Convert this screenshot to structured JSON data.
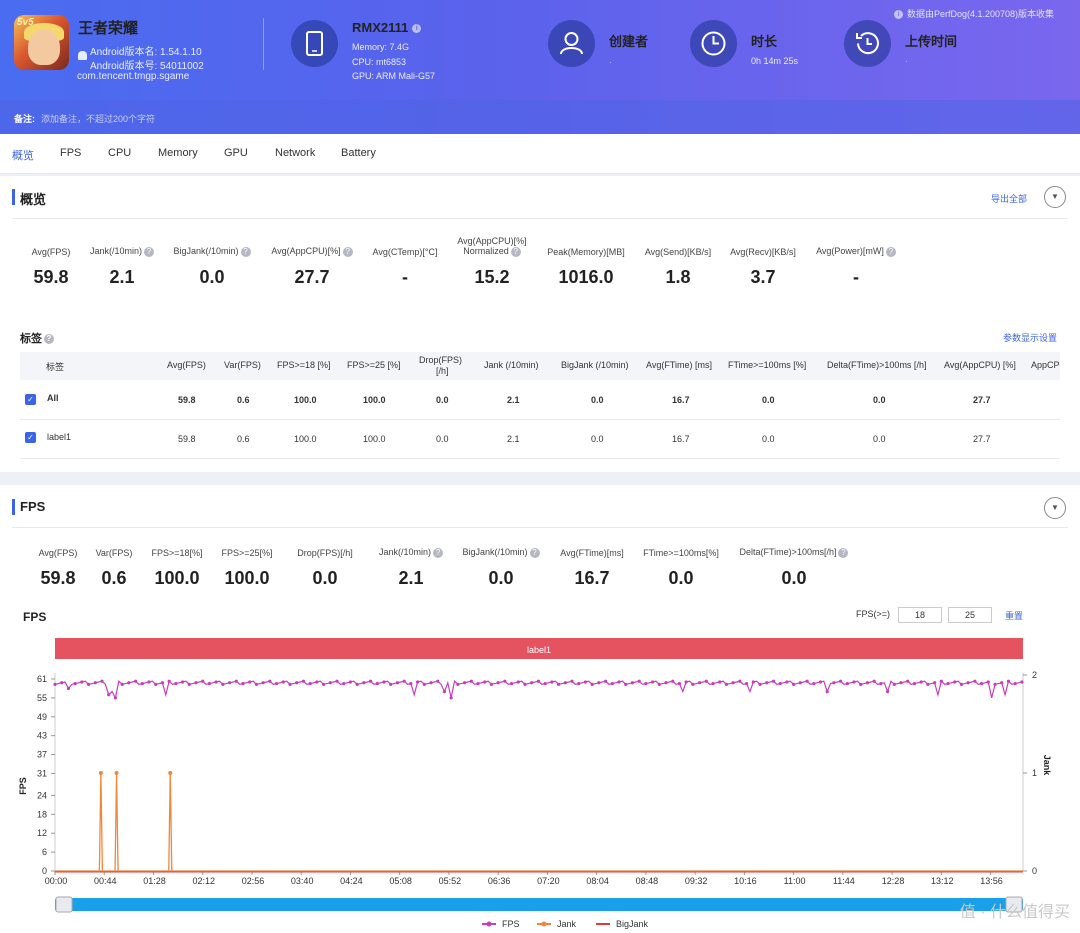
{
  "app": {
    "name": "王者荣耀",
    "icon_badge": "5v5",
    "version_name_line": "Android版本名: 1.54.1.10",
    "version_code_line": "Android版本号: 54011002",
    "package": "com.tencent.tmgp.sgame"
  },
  "device": {
    "name": "RMX2111",
    "memory": "Memory: 7.4G",
    "cpu": "CPU: mt6853",
    "gpu": "GPU: ARM Mali-G57"
  },
  "meta": {
    "creator_title": "创建者",
    "creator_value": "·",
    "duration_title": "时长",
    "duration_value": "0h 14m 25s",
    "upload_title": "上传时间",
    "upload_value": "·"
  },
  "perfdog_note": "数据由PerfDog(4.1.200708)版本收集",
  "note": {
    "label": "备注:",
    "placeholder": "添加备注，不超过200个字符"
  },
  "tabs": [
    "概览",
    "FPS",
    "CPU",
    "Memory",
    "GPU",
    "Network",
    "Battery"
  ],
  "overview": {
    "title": "概览",
    "export_label": "导出全部",
    "stats": [
      {
        "label": "Avg(FPS)",
        "value": "59.8"
      },
      {
        "label": "Jank(/10min)",
        "value": "2.1"
      },
      {
        "label": "BigJank(/10min)",
        "value": "0.0"
      },
      {
        "label": "Avg(AppCPU)[%]",
        "value": "27.7"
      },
      {
        "label": "Avg(CTemp)[°C]",
        "value": "-"
      },
      {
        "label": "Avg(AppCPU)[%]",
        "label2": "Normalized",
        "value": "15.2"
      },
      {
        "label": "Peak(Memory)[MB]",
        "value": "1016.0"
      },
      {
        "label": "Avg(Send)[KB/s]",
        "value": "1.8"
      },
      {
        "label": "Avg(Recv)[KB/s]",
        "value": "3.7"
      },
      {
        "label": "Avg(Power)[mW]",
        "value": "-"
      }
    ],
    "tags_title": "标签",
    "param_settings": "参数显示设置",
    "table": {
      "headers": [
        "标签",
        "Avg(FPS)",
        "Var(FPS)",
        "FPS>=18 [%]",
        "FPS>=25 [%]",
        "Drop(FPS)",
        "[/h]",
        "Jank (/10min)",
        "BigJank (/10min)",
        "Avg(FTime) [ms]",
        "FTime>=100ms [%]",
        "Delta(FTime)>100ms [/h]",
        "Avg(AppCPU) [%]",
        "AppCP"
      ],
      "rows": [
        {
          "label": "All",
          "values": [
            "59.8",
            "0.6",
            "100.0",
            "100.0",
            "0.0",
            "2.1",
            "0.0",
            "16.7",
            "0.0",
            "0.0",
            "27.7"
          ]
        },
        {
          "label": "label1",
          "values": [
            "59.8",
            "0.6",
            "100.0",
            "100.0",
            "0.0",
            "2.1",
            "0.0",
            "16.7",
            "0.0",
            "0.0",
            "27.7"
          ]
        }
      ]
    }
  },
  "fps_section": {
    "title": "FPS",
    "stats": [
      {
        "label": "Avg(FPS)",
        "value": "59.8"
      },
      {
        "label": "Var(FPS)",
        "value": "0.6"
      },
      {
        "label": "FPS>=18[%]",
        "value": "100.0"
      },
      {
        "label": "FPS>=25[%]",
        "value": "100.0"
      },
      {
        "label": "Drop(FPS)[/h]",
        "value": "0.0"
      },
      {
        "label": "Jank(/10min)",
        "value": "2.1"
      },
      {
        "label": "BigJank(/10min)",
        "value": "0.0"
      },
      {
        "label": "Avg(FTime)[ms]",
        "value": "16.7"
      },
      {
        "label": "FTime>=100ms[%]",
        "value": "0.0"
      },
      {
        "label": "Delta(FTime)>100ms[/h]",
        "value": "0.0"
      }
    ],
    "chart_title": "FPS",
    "fps_filter_label": "FPS(>=)",
    "fps_filter_1": "18",
    "fps_filter_2": "25",
    "reset_label": "重置",
    "label_band": "label1"
  },
  "chart_data": {
    "type": "line",
    "ylabel": "FPS",
    "y2label": "Jank",
    "y_ticks": [
      "61",
      "55",
      "49",
      "43",
      "37",
      "31",
      "24",
      "18",
      "12",
      "6",
      "0"
    ],
    "y_range": [
      0,
      61
    ],
    "y2_ticks": [
      "2",
      "1",
      "0"
    ],
    "y2_range": [
      0,
      2
    ],
    "x_ticks": [
      "00:00",
      "00:44",
      "01:28",
      "02:12",
      "02:56",
      "03:40",
      "04:24",
      "05:08",
      "05:52",
      "06:36",
      "07:20",
      "08:04",
      "08:48",
      "09:32",
      "10:16",
      "11:00",
      "11:44",
      "12:28",
      "13:12",
      "13:56"
    ],
    "duration_seconds": 865,
    "series": [
      {
        "name": "FPS",
        "color": "#c83dbd",
        "baseline": 59.8,
        "dips": [
          [
            12,
            58
          ],
          [
            47,
            56
          ],
          [
            52,
            57
          ],
          [
            55,
            55
          ],
          [
            100,
            56
          ],
          [
            320,
            56
          ],
          [
            348,
            57
          ],
          [
            355,
            55
          ],
          [
            560,
            57
          ],
          [
            620,
            57
          ],
          [
            690,
            57
          ],
          [
            745,
            57
          ],
          [
            790,
            56
          ],
          [
            838,
            55
          ],
          [
            850,
            56
          ]
        ]
      },
      {
        "name": "Jank",
        "color": "#f0873a",
        "spikes": [
          [
            41,
            1
          ],
          [
            55,
            1
          ],
          [
            103,
            1
          ]
        ]
      },
      {
        "name": "BigJank",
        "color": "#e03a3a",
        "spikes": []
      }
    ]
  },
  "watermark": "值 · 什么值得买"
}
